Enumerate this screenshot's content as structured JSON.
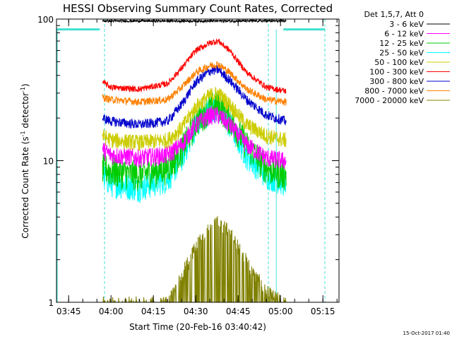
{
  "chart_data": {
    "type": "line",
    "title": "HESSI Observing Summary Count Rates, Corrected",
    "xlabel": "Start Time (20-Feb-16 03:40:42)",
    "ylabel": "Corrected Count Rate (s⁻¹ detector⁻¹)",
    "ylabel_main": "Corrected Count Rate (s",
    "ylabel_mid": " detector",
    "ylabel_end": ")",
    "ylabel_sup": "-1",
    "footer_timestamp": "15-Oct-2017 01:40",
    "legend_header": "Det 1,5,7, Att 0",
    "y_scale": "log",
    "ylim": [
      1,
      100
    ],
    "xlim": [
      "03:40:42",
      "05:20:42"
    ],
    "x_ticks": [
      "03:45",
      "04:00",
      "04:15",
      "04:30",
      "04:45",
      "05:00",
      "05:15"
    ],
    "y_ticks": [
      "1",
      "10",
      "100"
    ],
    "vertical_markers": [
      "03:57:42",
      "04:55:42",
      "05:15:42"
    ],
    "marker_color": "#40e0d0",
    "x": [
      "03:57",
      "04:00",
      "04:10",
      "04:20",
      "04:25",
      "04:30",
      "04:35",
      "04:38",
      "04:42",
      "04:48",
      "04:55",
      "05:02"
    ],
    "series": [
      {
        "name": "3 - 6 keV",
        "color": "#000000",
        "values": [
          97,
          97,
          97,
          97,
          97,
          97,
          97,
          97,
          97,
          97,
          97,
          97
        ]
      },
      {
        "name": "6 - 12 keV",
        "color": "#ff00ff",
        "values": [
          12,
          11,
          10.5,
          11,
          13,
          18,
          21,
          21,
          18,
          13,
          10.5,
          10
        ]
      },
      {
        "name": "12 - 25 keV",
        "color": "#00cc00",
        "values": [
          9,
          8.5,
          8,
          9,
          12,
          19,
          24,
          25,
          20,
          13,
          9,
          8
        ]
      },
      {
        "name": "25 - 50 keV",
        "color": "#00ffff",
        "values": [
          8,
          7,
          6.5,
          7.5,
          10.5,
          18,
          23,
          24,
          18,
          11,
          8,
          7
        ]
      },
      {
        "name": "50 - 100 keV",
        "color": "#cccc00",
        "values": [
          15,
          14,
          13.5,
          14,
          17,
          24,
          29,
          30,
          25,
          18,
          15,
          14
        ]
      },
      {
        "name": "100 - 300 keV",
        "color": "#ff0000",
        "values": [
          36,
          33,
          32,
          35,
          45,
          60,
          68,
          70,
          60,
          42,
          33,
          31
        ]
      },
      {
        "name": "300 - 800 keV",
        "color": "#0000cc",
        "values": [
          20,
          19,
          18,
          19,
          25,
          36,
          43,
          44,
          37,
          27,
          21,
          19
        ]
      },
      {
        "name": "800 - 7000 keV",
        "color": "#ff8000",
        "values": [
          28,
          27,
          26,
          27,
          33,
          42,
          47,
          48,
          42,
          32,
          27,
          26
        ]
      },
      {
        "name": "7000 - 20000 keV",
        "color": "#808000",
        "values": [
          1,
          1,
          1,
          1,
          1.6,
          2.5,
          3.5,
          3.8,
          3.2,
          2,
          1.2,
          1
        ]
      }
    ]
  }
}
